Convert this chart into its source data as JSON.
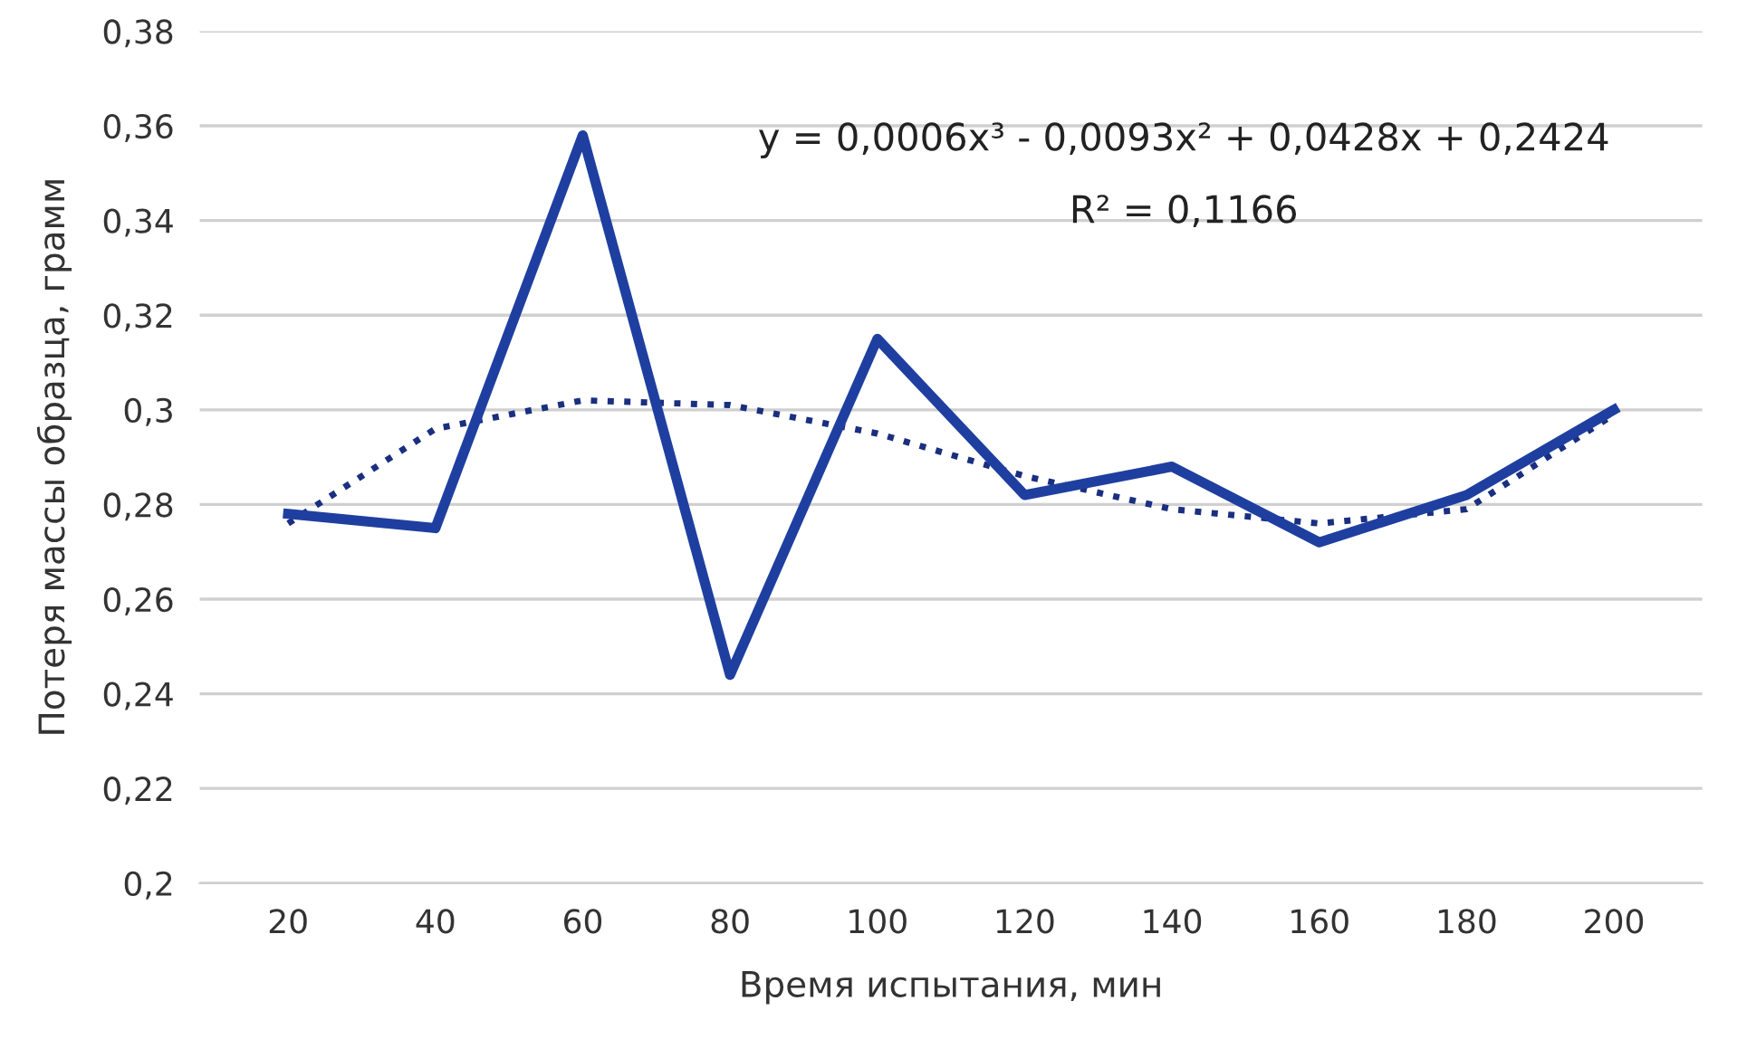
{
  "chart_data": {
    "type": "line",
    "xlabel": "Время испытания, мин",
    "ylabel": "Потеря массы образца, грамм",
    "categories": [
      "20",
      "40",
      "60",
      "80",
      "100",
      "120",
      "140",
      "160",
      "180",
      "200"
    ],
    "series": [
      {
        "color": "#1f3fa0",
        "values": [
          0.278,
          0.275,
          0.358,
          0.244,
          0.315,
          0.282,
          0.288,
          0.272,
          0.282,
          0.3
        ],
        "line_style": "solid"
      },
      {
        "type": "line",
        "color": "#1a2f80",
        "values": [
          0.276,
          0.296,
          0.302,
          0.301,
          0.295,
          0.286,
          0.279,
          0.276,
          0.279,
          0.299
        ],
        "line_style": "dotted"
      }
    ],
    "ylim": [
      0.2,
      0.38
    ],
    "yticks": [
      {
        "value": 0.2,
        "label": "0,2"
      },
      {
        "value": 0.22,
        "label": "0,22"
      },
      {
        "value": 0.24,
        "label": "0,24"
      },
      {
        "value": 0.26,
        "label": "0,26"
      },
      {
        "value": 0.28,
        "label": "0,28"
      },
      {
        "value": 0.3,
        "label": "0,3"
      },
      {
        "value": 0.32,
        "label": "0,32"
      },
      {
        "value": 0.34,
        "label": "0,34"
      },
      {
        "value": 0.36,
        "label": "0,36"
      },
      {
        "value": 0.38,
        "label": "0,38"
      }
    ],
    "grid": "y",
    "marker": "none",
    "legend": false,
    "annotations": [
      "y = 0,0006x³ - 0,0093x² + 0,0428x + 0,2424",
      "R² = 0,1166"
    ]
  }
}
